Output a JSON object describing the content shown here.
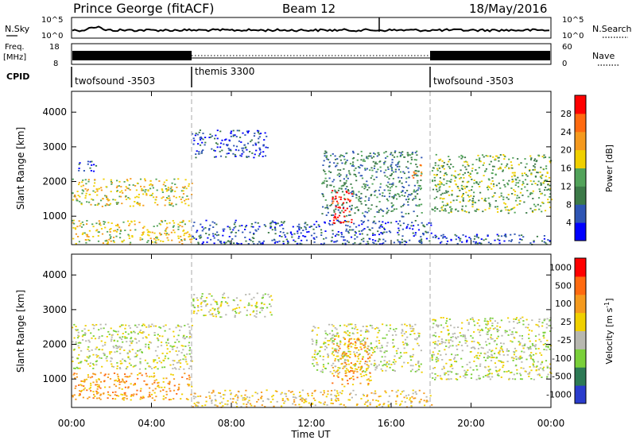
{
  "header": {
    "station": "Prince George (fitACF)",
    "beam": "Beam 12",
    "date": "18/May/2016"
  },
  "noise_panel": {
    "left_label": "N.Sky",
    "left_ticks": [
      "10^5",
      "10^0"
    ],
    "right_label": "N.Search",
    "right_ticks": [
      "10^5",
      "10^0"
    ]
  },
  "freq_panel": {
    "left_label_1": "Freq.",
    "left_label_2": "[MHz]",
    "left_ticks": [
      "18",
      "8"
    ],
    "right_label": "Nave",
    "right_ticks": [
      "60",
      "0"
    ]
  },
  "cpid": {
    "label": "CPID",
    "segments": [
      {
        "start_hr": 0,
        "end_hr": 6,
        "name": "twofsound -3503"
      },
      {
        "start_hr": 6,
        "end_hr": 18,
        "name": "themis 3300"
      },
      {
        "start_hr": 18,
        "end_hr": 24,
        "name": "twofsound -3503"
      }
    ]
  },
  "x_axis": {
    "label": "Time UT",
    "ticks": [
      "00:00",
      "04:00",
      "08:00",
      "12:00",
      "16:00",
      "20:00",
      "00:00"
    ]
  },
  "chart_data": [
    {
      "type": "heatmap",
      "title": "",
      "xlabel": "Time UT",
      "ylabel": "Slant Range [km]",
      "xlim_hours": [
        0,
        24
      ],
      "ylim_km": [
        180,
        4600
      ],
      "y_ticks": [
        1000,
        2000,
        3000,
        4000
      ],
      "colorbar": {
        "label": "Power [dB]",
        "ticks": [
          "4",
          "8",
          "12",
          "16",
          "20",
          "24",
          "28"
        ],
        "colors": [
          "#0000ff",
          "#2e55b4",
          "#3c7a48",
          "#52a35a",
          "#f0d000",
          "#f59a1e",
          "#ff6a10",
          "#ff0000"
        ]
      },
      "regions": [
        {
          "t0": 0.0,
          "t1": 6.0,
          "r0": 200,
          "r1": 900,
          "level": 4
        },
        {
          "t0": 0.0,
          "t1": 6.0,
          "r0": 1300,
          "r1": 2100,
          "level": 4
        },
        {
          "t0": 0.2,
          "t1": 1.2,
          "r0": 2300,
          "r1": 2600,
          "level": 1
        },
        {
          "t0": 6.0,
          "t1": 9.8,
          "r0": 2700,
          "r1": 3500,
          "level": 1
        },
        {
          "t0": 6.0,
          "t1": 18.0,
          "r0": 200,
          "r1": 900,
          "level": 1
        },
        {
          "t0": 12.5,
          "t1": 17.5,
          "r0": 1000,
          "r1": 2900,
          "level": 2
        },
        {
          "t0": 13.0,
          "t1": 14.0,
          "r0": 800,
          "r1": 1800,
          "level": 7
        },
        {
          "t0": 17.0,
          "t1": 17.5,
          "r0": 2100,
          "r1": 2500,
          "level": 5
        },
        {
          "t0": 18.0,
          "t1": 24.0,
          "r0": 1100,
          "r1": 2800,
          "level": 3
        },
        {
          "t0": 18.0,
          "t1": 24.0,
          "r0": 200,
          "r1": 500,
          "level": 1
        }
      ]
    },
    {
      "type": "heatmap",
      "title": "",
      "xlabel": "Time UT",
      "ylabel": "Slant Range [km]",
      "xlim_hours": [
        0,
        24
      ],
      "ylim_km": [
        180,
        4600
      ],
      "y_ticks": [
        1000,
        2000,
        3000,
        4000
      ],
      "colorbar": {
        "label": "Velocity [m s^-1]",
        "ticks": [
          "1000",
          "500",
          "100",
          "25",
          "-25",
          "-100",
          "-500",
          "-1000"
        ],
        "colors": [
          "#2a3ccc",
          "#2d7a55",
          "#7ad03a",
          "#b8b8b0",
          "#f0d000",
          "#f59a1e",
          "#ff6a10",
          "#ff0000"
        ]
      },
      "regions": [
        {
          "t0": 0.0,
          "t1": 6.0,
          "r0": 400,
          "r1": 1200,
          "level": 5
        },
        {
          "t0": 0.0,
          "t1": 6.0,
          "r0": 1300,
          "r1": 2600,
          "level": 3
        },
        {
          "t0": 6.0,
          "t1": 10.0,
          "r0": 2800,
          "r1": 3500,
          "level": 3
        },
        {
          "t0": 6.0,
          "t1": 18.0,
          "r0": 200,
          "r1": 700,
          "level": 4
        },
        {
          "t0": 12.0,
          "t1": 17.5,
          "r0": 1200,
          "r1": 2600,
          "level": 3
        },
        {
          "t0": 13.0,
          "t1": 15.0,
          "r0": 800,
          "r1": 2200,
          "level": 5
        },
        {
          "t0": 18.0,
          "t1": 24.0,
          "r0": 1000,
          "r1": 2800,
          "level": 3
        }
      ]
    }
  ]
}
